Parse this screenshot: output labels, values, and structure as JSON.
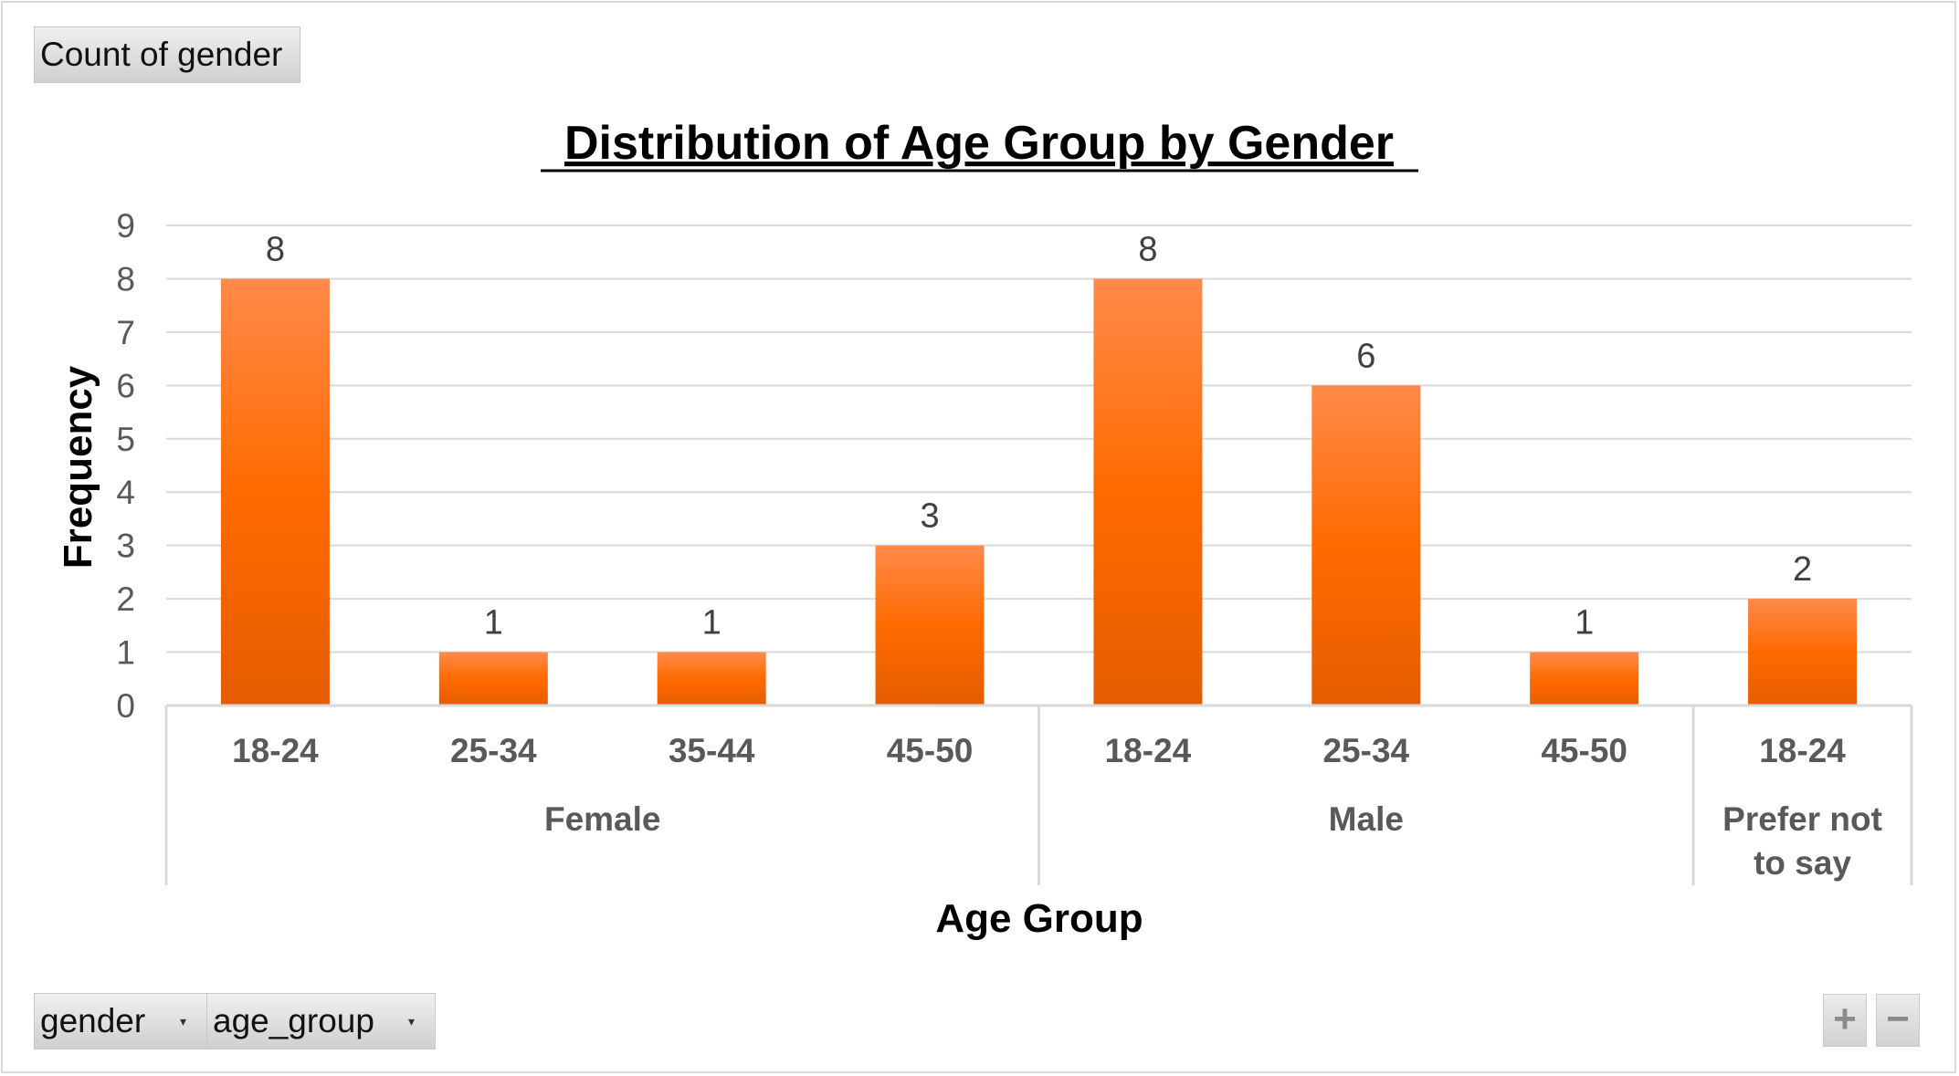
{
  "pivot": {
    "value_field": "Count of gender",
    "row_fields": [
      {
        "label": "gender",
        "icon": "dropdown-arrow-icon"
      },
      {
        "label": "age_group",
        "icon": "dropdown-arrow-icon"
      }
    ],
    "zoom_in_label": "+",
    "zoom_out_label": "−"
  },
  "chart_data": {
    "type": "bar",
    "title": "Distribution of Age Group by Gender",
    "xlabel": "Age Group",
    "ylabel": "Frequency",
    "ylim": [
      0,
      9
    ],
    "yticks": [
      "0",
      "1",
      "2",
      "3",
      "4",
      "5",
      "6",
      "7",
      "8",
      "9"
    ],
    "grid": true,
    "legend": "none",
    "groups": [
      {
        "name": "Female",
        "categories": [
          "18-24",
          "25-34",
          "35-44",
          "45-50"
        ],
        "values": [
          8,
          1,
          1,
          3
        ]
      },
      {
        "name": "Male",
        "categories": [
          "18-24",
          "25-34",
          "45-50"
        ],
        "values": [
          8,
          6,
          1
        ]
      },
      {
        "name": "Prefer not to say",
        "name_lines": [
          "Prefer not",
          "to say"
        ],
        "categories": [
          "18-24"
        ],
        "values": [
          2
        ]
      }
    ],
    "colors": {
      "bar_top": "#ff8a4a",
      "bar_mid": "#ff6a00",
      "bar_bottom": "#e55c00",
      "grid": "#d9d9d9",
      "axis_text": "#595959",
      "group_text": "#595959"
    }
  }
}
